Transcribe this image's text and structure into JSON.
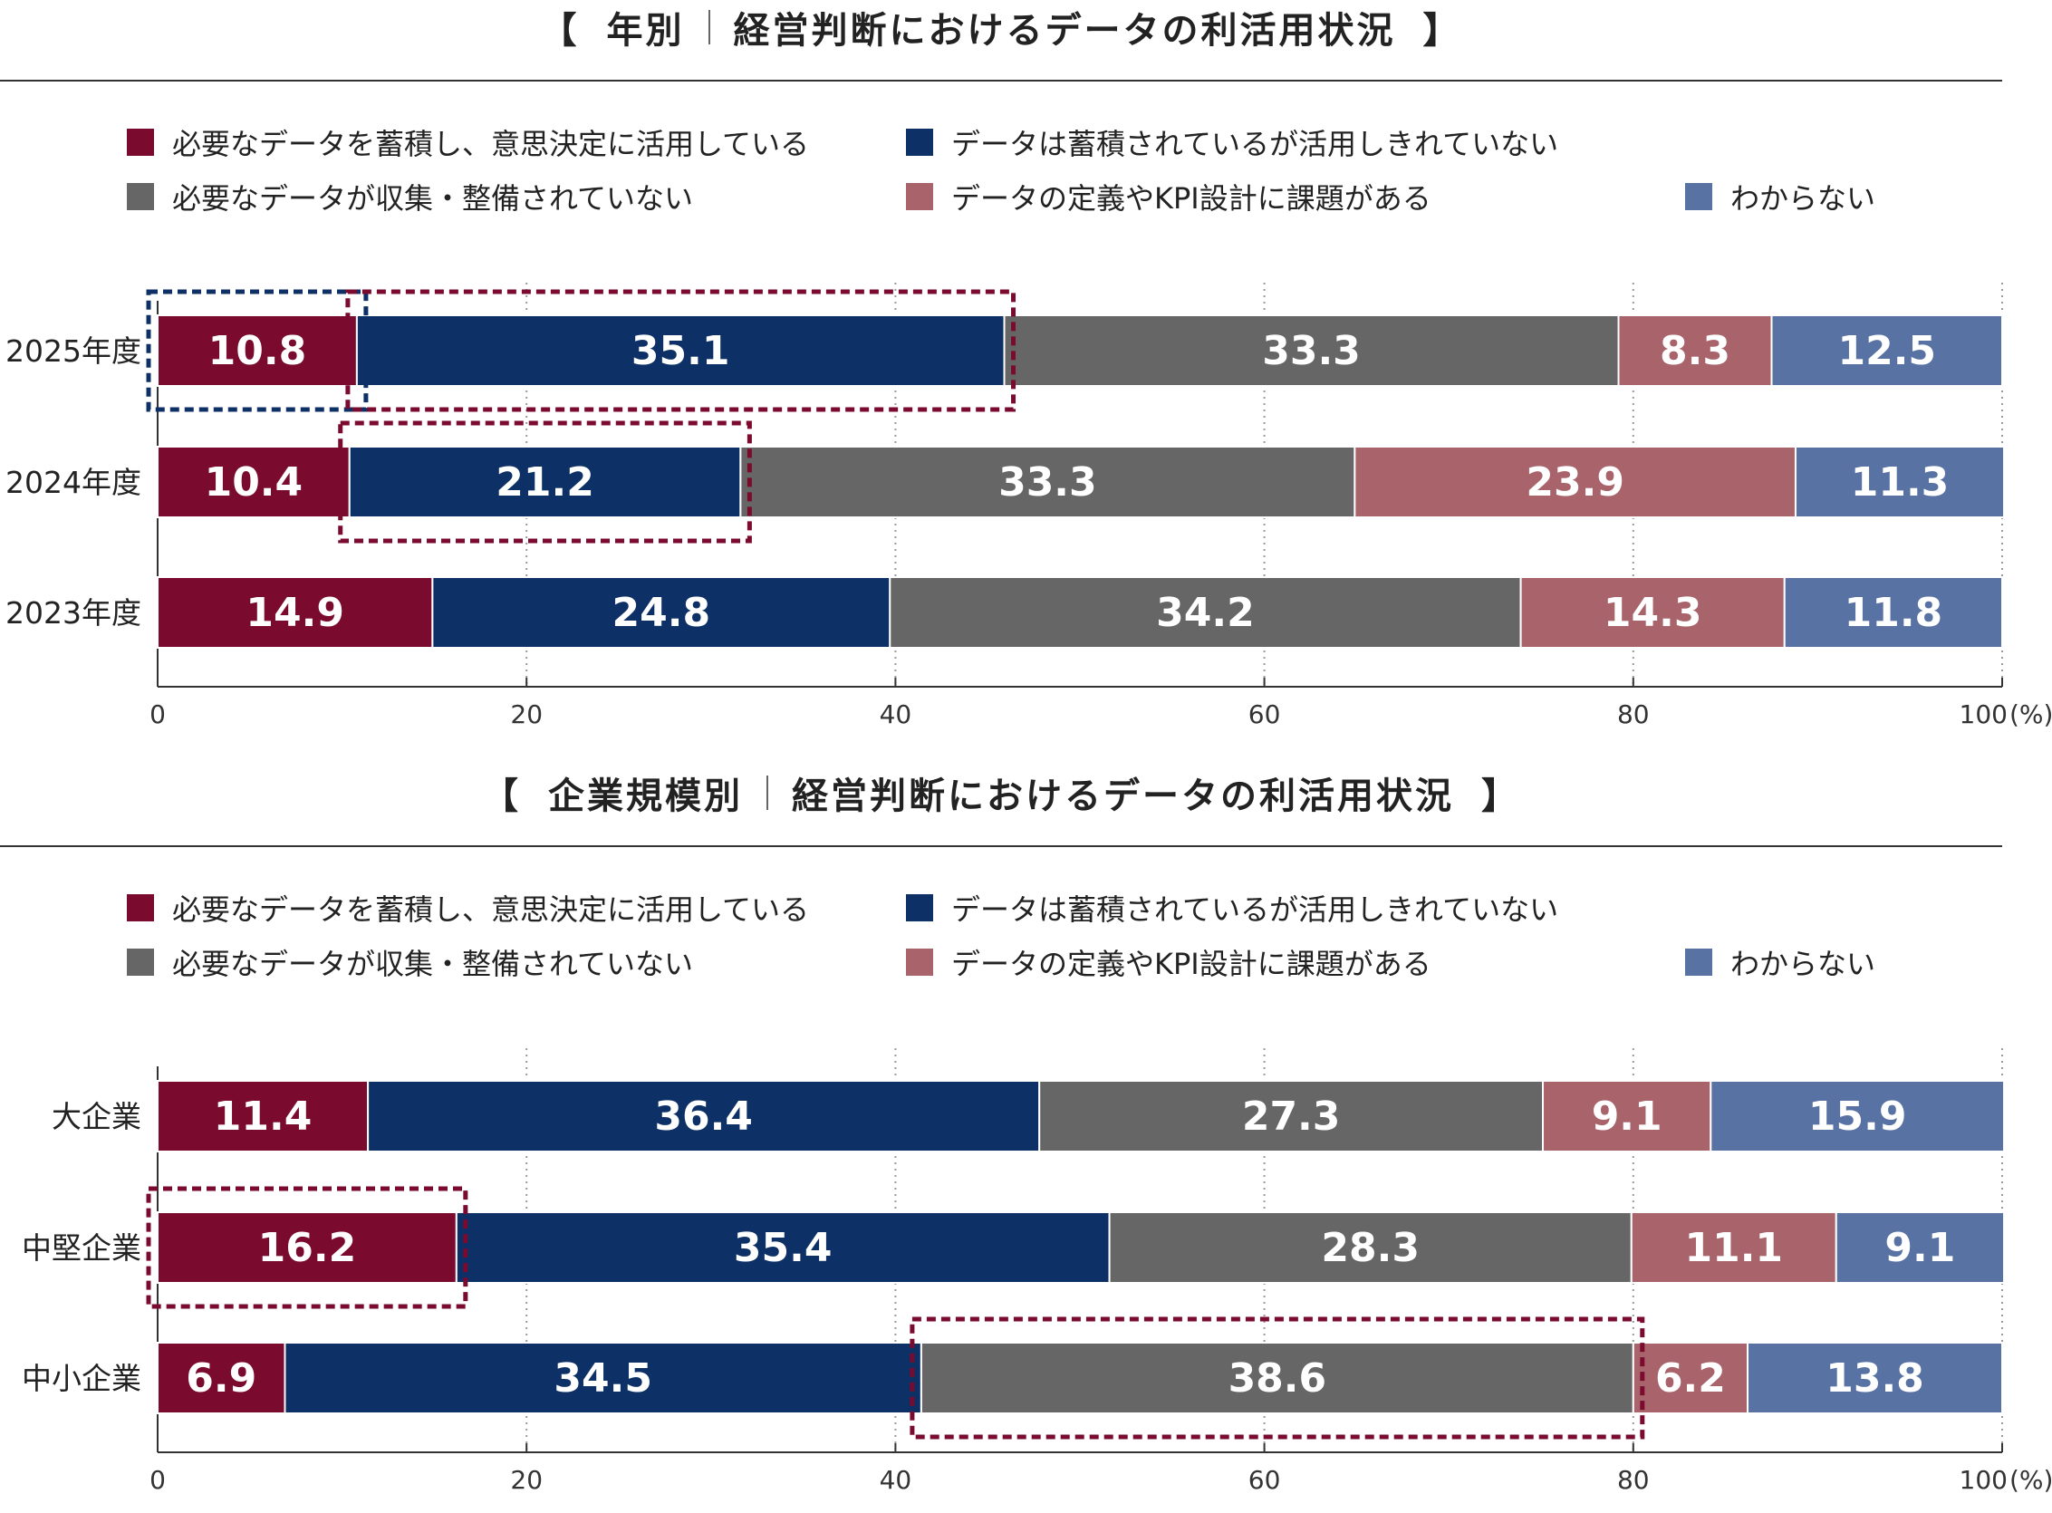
{
  "legend": [
    {
      "label": "必要なデータを蓄積し、意思決定に活用している",
      "color": "#7a0a2e"
    },
    {
      "label": "データは蓄積されているが活用しきれていない",
      "color": "#0d3166"
    },
    {
      "label": "必要なデータが収集・整備されていない",
      "color": "#666666"
    },
    {
      "label": "データの定義やKPI設計に課題がある",
      "color": "#a8636b"
    },
    {
      "label": "わからない",
      "color": "#5872a3"
    }
  ],
  "highlight_colors": {
    "maroon": "#7a0a2e",
    "navy": "#0d3166"
  },
  "chart_data": [
    {
      "type": "bar",
      "orientation": "horizontal",
      "stacked": true,
      "title_open": "【",
      "title_left": "年別",
      "title_right": "経営判断におけるデータの利活用状況",
      "title_close": "】",
      "categories": [
        "2025年度",
        "2024年度",
        "2023年度"
      ],
      "series": [
        {
          "name": "必要なデータを蓄積し、意思決定に活用している",
          "values": [
            10.8,
            10.4,
            14.9
          ]
        },
        {
          "name": "データは蓄積されているが活用しきれていない",
          "values": [
            35.1,
            21.2,
            24.8
          ]
        },
        {
          "name": "必要なデータが収集・整備されていない",
          "values": [
            33.3,
            33.3,
            34.2
          ]
        },
        {
          "name": "データの定義やKPI設計に課題がある",
          "values": [
            8.3,
            23.9,
            14.3
          ]
        },
        {
          "name": "わからない",
          "values": [
            12.5,
            11.3,
            11.8
          ]
        }
      ],
      "xlim": [
        0,
        100
      ],
      "xticks": [
        "0",
        "20",
        "40",
        "60",
        "80",
        "100"
      ],
      "xunit": "(%)",
      "grid": "vertical dotted",
      "highlights": [
        {
          "row": 0,
          "seg_from": 0,
          "seg_to": 0,
          "color": "navy"
        },
        {
          "row": 0,
          "seg_from": 1,
          "seg_to": 1,
          "color": "maroon"
        },
        {
          "row": 1,
          "seg_from": 1,
          "seg_to": 1,
          "color": "maroon"
        }
      ]
    },
    {
      "type": "bar",
      "orientation": "horizontal",
      "stacked": true,
      "title_open": "【",
      "title_left": "企業規模別",
      "title_right": "経営判断におけるデータの利活用状況",
      "title_close": "】",
      "categories": [
        "大企業",
        "中堅企業",
        "中小企業"
      ],
      "series": [
        {
          "name": "必要なデータを蓄積し、意思決定に活用している",
          "values": [
            11.4,
            16.2,
            6.9
          ]
        },
        {
          "name": "データは蓄積されているが活用しきれていない",
          "values": [
            36.4,
            35.4,
            34.5
          ]
        },
        {
          "name": "必要なデータが収集・整備されていない",
          "values": [
            27.3,
            28.3,
            38.6
          ]
        },
        {
          "name": "データの定義やKPI設計に課題がある",
          "values": [
            9.1,
            11.1,
            6.2
          ]
        },
        {
          "name": "わからない",
          "values": [
            15.9,
            9.1,
            13.8
          ]
        }
      ],
      "xlim": [
        0,
        100
      ],
      "xticks": [
        "0",
        "20",
        "40",
        "60",
        "80",
        "100"
      ],
      "xunit": "(%)",
      "grid": "vertical dotted",
      "highlights": [
        {
          "row": 1,
          "seg_from": 0,
          "seg_to": 0,
          "color": "maroon"
        },
        {
          "row": 2,
          "seg_from": 2,
          "seg_to": 2,
          "color": "maroon"
        }
      ]
    }
  ]
}
